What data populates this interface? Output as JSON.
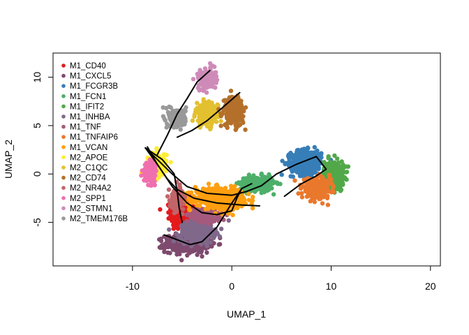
{
  "chart_data": {
    "type": "scatter",
    "title": "",
    "xlabel": "UMAP_1",
    "ylabel": "UMAP_2",
    "xlim": [
      -18,
      21
    ],
    "ylim": [
      -9.5,
      12.5
    ],
    "xticks": [
      -10,
      0,
      10,
      20
    ],
    "yticks": [
      -5,
      0,
      5,
      10
    ],
    "grid": false,
    "legend_position": "top-left",
    "series": [
      {
        "name": "M1_CD40",
        "color": "#E41A1C",
        "clusters": [
          {
            "cx": -5.0,
            "cy": -4.0,
            "sx": 1.0,
            "sy": 1.3,
            "n": 420
          }
        ]
      },
      {
        "name": "M1_CXCL5",
        "color": "#7E4A6E",
        "clusters": [
          {
            "cx": -4.5,
            "cy": -7.2,
            "sx": 2.0,
            "sy": 0.8,
            "n": 480
          }
        ]
      },
      {
        "name": "M1_FCGR3B",
        "color": "#377EB8",
        "clusters": [
          {
            "cx": 7.5,
            "cy": 1.2,
            "sx": 1.4,
            "sy": 1.1,
            "n": 520
          }
        ]
      },
      {
        "name": "M1_FCN1",
        "color": "#4DAF6A",
        "clusters": [
          {
            "cx": 2.5,
            "cy": -1.0,
            "sx": 1.5,
            "sy": 0.7,
            "n": 260
          }
        ]
      },
      {
        "name": "M1_IFIT2",
        "color": "#52A849",
        "clusters": [
          {
            "cx": 10.3,
            "cy": 0.0,
            "sx": 0.9,
            "sy": 1.2,
            "n": 360
          }
        ]
      },
      {
        "name": "M1_INHBA",
        "color": "#80688B",
        "clusters": [
          {
            "cx": -3.5,
            "cy": -6.0,
            "sx": 1.6,
            "sy": 1.0,
            "n": 340
          }
        ]
      },
      {
        "name": "M1_TNF",
        "color": "#A55A7D",
        "clusters": [
          {
            "cx": -2.5,
            "cy": -4.3,
            "sx": 1.2,
            "sy": 0.6,
            "n": 260
          }
        ]
      },
      {
        "name": "M1_TNFAIP6",
        "color": "#E9782C",
        "clusters": [
          {
            "cx": 8.5,
            "cy": -1.5,
            "sx": 1.3,
            "sy": 0.9,
            "n": 360
          }
        ]
      },
      {
        "name": "M1_VCAN",
        "color": "#FF9F10",
        "clusters": [
          {
            "cx": -1.2,
            "cy": -2.5,
            "sx": 2.3,
            "sy": 0.9,
            "n": 520
          }
        ]
      },
      {
        "name": "M2_APOE",
        "color": "#FFEC33",
        "clusters": [
          {
            "cx": -7.5,
            "cy": 1.0,
            "sx": 0.8,
            "sy": 1.1,
            "n": 200
          }
        ]
      },
      {
        "name": "M2_C1QC",
        "color": "#E3C02F",
        "clusters": [
          {
            "cx": -2.5,
            "cy": 6.2,
            "sx": 1.0,
            "sy": 1.0,
            "n": 260
          }
        ]
      },
      {
        "name": "M2_CD74",
        "color": "#B4702B",
        "clusters": [
          {
            "cx": 0.2,
            "cy": 6.5,
            "sx": 0.9,
            "sy": 1.4,
            "n": 260
          }
        ]
      },
      {
        "name": "M2_NR4A2",
        "color": "#C06569",
        "clusters": [
          {
            "cx": -5.5,
            "cy": -2.5,
            "sx": 0.6,
            "sy": 1.0,
            "n": 160
          }
        ]
      },
      {
        "name": "M2_SPP1",
        "color": "#F06FAE",
        "clusters": [
          {
            "cx": -8.3,
            "cy": 0.2,
            "sx": 0.5,
            "sy": 0.9,
            "n": 180
          }
        ]
      },
      {
        "name": "M2_STMN1",
        "color": "#CE8BB8",
        "clusters": [
          {
            "cx": -2.5,
            "cy": 9.8,
            "sx": 0.8,
            "sy": 0.9,
            "n": 180
          }
        ]
      },
      {
        "name": "M2_TMEM176B",
        "color": "#999999",
        "clusters": [
          {
            "cx": -5.5,
            "cy": 5.8,
            "sx": 0.8,
            "sy": 0.9,
            "n": 160
          }
        ]
      }
    ],
    "trajectories": [
      {
        "points": [
          [
            -8.7,
            2.7
          ],
          [
            -7.5,
            1.5
          ],
          [
            -6.0,
            0.0
          ],
          [
            -4.5,
            -1.3
          ],
          [
            -2.5,
            -2.0
          ],
          [
            0.0,
            -2.2
          ],
          [
            1.5,
            -1.8
          ],
          [
            3.0,
            -1.2
          ],
          [
            4.5,
            0.0
          ],
          [
            6.5,
            1.0
          ],
          [
            8.5,
            1.8
          ],
          [
            9.5,
            0.5
          ],
          [
            8.5,
            -0.2
          ],
          [
            7.0,
            -1.0
          ],
          [
            5.3,
            -2.3
          ]
        ]
      },
      {
        "points": [
          [
            -8.7,
            2.7
          ],
          [
            -7.5,
            1.0
          ],
          [
            -6.5,
            -0.5
          ],
          [
            -5.5,
            -1.6
          ],
          [
            -3.8,
            -2.5
          ],
          [
            -1.5,
            -3.0
          ],
          [
            1.0,
            -3.2
          ],
          [
            2.8,
            -3.3
          ]
        ]
      },
      {
        "points": [
          [
            -8.5,
            2.8
          ],
          [
            -7.5,
            1.0
          ],
          [
            -6.0,
            -1.3
          ],
          [
            -4.5,
            -3.0
          ],
          [
            -3.0,
            -4.0
          ],
          [
            -1.5,
            -4.2
          ],
          [
            0.0,
            -3.8
          ],
          [
            0.5,
            -2.5
          ],
          [
            1.0,
            -1.5
          ],
          [
            2.0,
            -1.0
          ]
        ]
      },
      {
        "points": [
          [
            -6.8,
            -6.3
          ],
          [
            -5.5,
            -6.8
          ],
          [
            -4.2,
            -7.3
          ],
          [
            -3.0,
            -7.0
          ],
          [
            -1.5,
            -5.5
          ],
          [
            0.0,
            -3.0
          ],
          [
            1.0,
            -1.5
          ]
        ]
      },
      {
        "points": [
          [
            -7.5,
            2.0
          ],
          [
            -6.5,
            4.0
          ],
          [
            -5.5,
            6.2
          ],
          [
            -4.5,
            7.8
          ],
          [
            -3.5,
            9.5
          ],
          [
            -2.2,
            10.7
          ]
        ]
      },
      {
        "points": [
          [
            -5.5,
            3.8
          ],
          [
            -4.0,
            4.5
          ],
          [
            -2.5,
            5.5
          ],
          [
            -1.0,
            6.8
          ],
          [
            0.8,
            8.4
          ]
        ]
      },
      {
        "points": [
          [
            -8.7,
            2.7
          ],
          [
            -7.0,
            1.5
          ],
          [
            -5.8,
            0.0
          ],
          [
            -5.5,
            -1.8
          ],
          [
            -5.3,
            -3.5
          ],
          [
            -5.0,
            -5.0
          ]
        ]
      }
    ]
  }
}
